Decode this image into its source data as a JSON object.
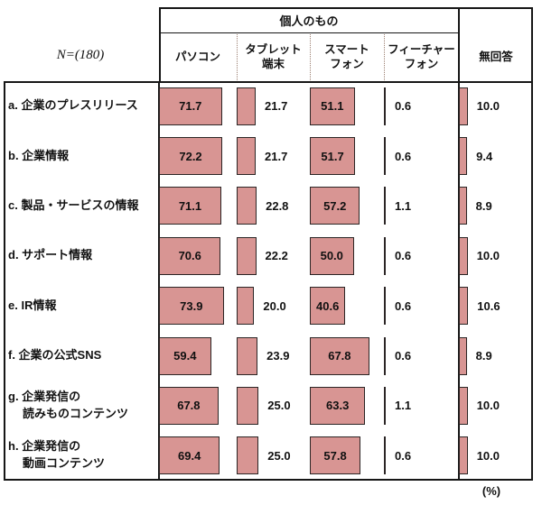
{
  "colors": {
    "bar_fill": "#D89593",
    "bar_border": "#2B2525",
    "line": "#161616",
    "dotted": "#9C8072"
  },
  "header": {
    "n_label": "N=(180)",
    "group_label": "個人のもの",
    "columns": [
      "パソコン",
      "タブレット\n端末",
      "スマート\nフォン",
      "フィーチャー\nフォン"
    ],
    "no_answer_label": "無回答"
  },
  "unit_label": "(%)",
  "rows": [
    {
      "label_lines": [
        "a. 企業のプレスリリース"
      ],
      "values": [
        "71.7",
        "21.7",
        "51.1",
        "0.6",
        "10.0"
      ]
    },
    {
      "label_lines": [
        "b. 企業情報"
      ],
      "values": [
        "72.2",
        "21.7",
        "51.7",
        "0.6",
        "9.4"
      ]
    },
    {
      "label_lines": [
        "c. 製品・サービスの情報"
      ],
      "values": [
        "71.1",
        "22.8",
        "57.2",
        "1.1",
        "8.9"
      ]
    },
    {
      "label_lines": [
        "d. サポート情報"
      ],
      "values": [
        "70.6",
        "22.2",
        "50.0",
        "0.6",
        "10.0"
      ]
    },
    {
      "label_lines": [
        "e. IR情報"
      ],
      "values": [
        "73.9",
        "20.0",
        "40.6",
        "0.6",
        "10.6"
      ]
    },
    {
      "label_lines": [
        "f. 企業の公式SNS"
      ],
      "values": [
        "59.4",
        "23.9",
        "67.8",
        "0.6",
        "8.9"
      ]
    },
    {
      "label_lines": [
        "g. 企業発信の",
        "読みものコンテンツ"
      ],
      "values": [
        "67.8",
        "25.0",
        "63.3",
        "1.1",
        "10.0"
      ]
    },
    {
      "label_lines": [
        "h. 企業発信の",
        "動画コンテンツ"
      ],
      "values": [
        "69.4",
        "25.0",
        "57.8",
        "0.6",
        "10.0"
      ]
    }
  ],
  "chart_data": {
    "type": "bar",
    "orientation": "horizontal",
    "title": "",
    "n": 180,
    "unit": "%",
    "group_label": "個人のもの",
    "grouped_series": [
      "パソコン",
      "タブレット端末",
      "スマートフォン",
      "フィーチャーフォン"
    ],
    "categories": [
      "a. 企業のプレスリリース",
      "b. 企業情報",
      "c. 製品・サービスの情報",
      "d. サポート情報",
      "e. IR情報",
      "f. 企業の公式SNS",
      "g. 企業発信の読みものコンテンツ",
      "h. 企業発信の動画コンテンツ"
    ],
    "series": [
      {
        "name": "パソコン",
        "values": [
          71.7,
          72.2,
          71.1,
          70.6,
          73.9,
          59.4,
          67.8,
          69.4
        ]
      },
      {
        "name": "タブレット端末",
        "values": [
          21.7,
          21.7,
          22.8,
          22.2,
          20.0,
          23.9,
          25.0,
          25.0
        ]
      },
      {
        "name": "スマートフォン",
        "values": [
          51.1,
          51.7,
          57.2,
          50.0,
          40.6,
          67.8,
          63.3,
          57.8
        ]
      },
      {
        "name": "フィーチャーフォン",
        "values": [
          0.6,
          0.6,
          1.1,
          0.6,
          0.6,
          0.6,
          1.1,
          0.6
        ]
      },
      {
        "name": "無回答",
        "values": [
          10.0,
          9.4,
          8.9,
          10.0,
          10.6,
          8.9,
          10.0,
          10.0
        ]
      }
    ],
    "xlim": [
      0,
      85
    ],
    "grid": false,
    "legend_position": "column-headers"
  }
}
